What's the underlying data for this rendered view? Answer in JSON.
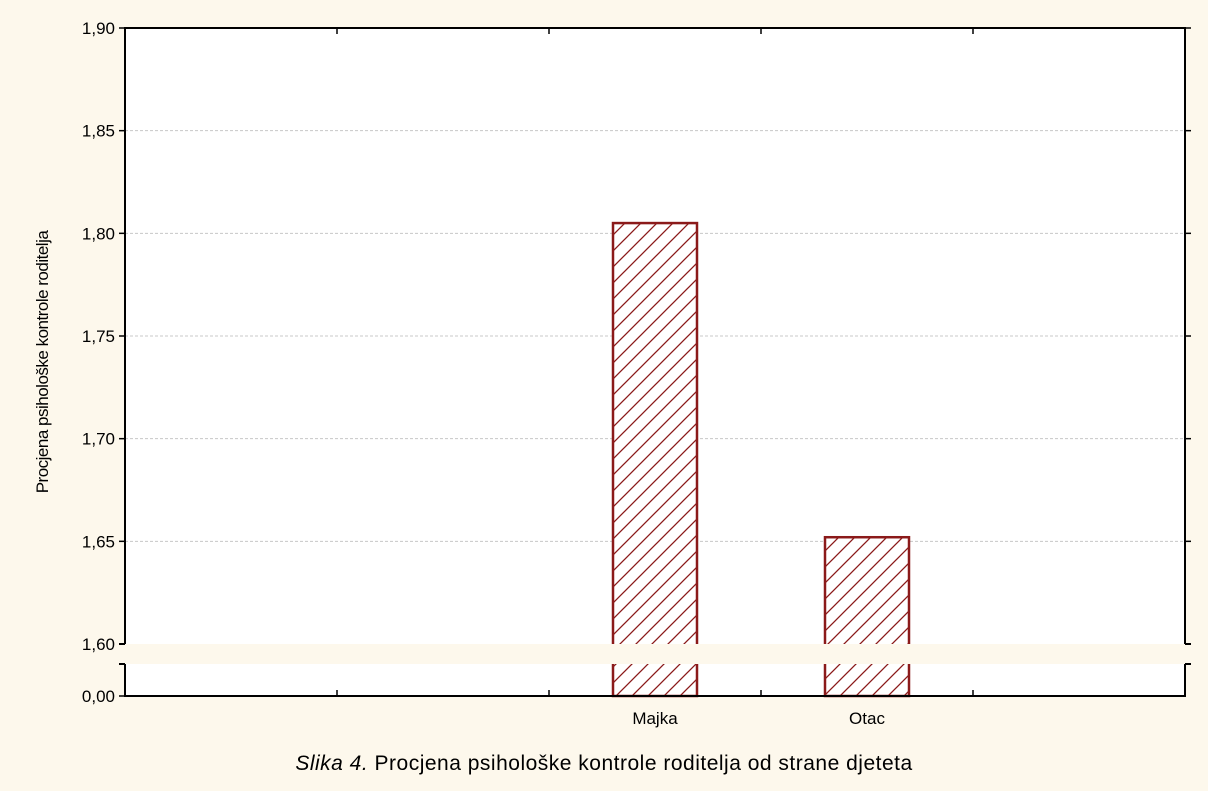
{
  "chart_data": {
    "type": "bar",
    "categories": [
      "Majka",
      "Otac"
    ],
    "values": [
      1.805,
      1.652
    ],
    "ylabel": "Procjena psihološke kontrole roditelja",
    "ylim": [
      1.6,
      1.9
    ],
    "yticks": [
      "1,60",
      "1,65",
      "1,70",
      "1,75",
      "1,80",
      "1,85",
      "1,90"
    ],
    "axis_break": true,
    "baseline_tick": "0,00",
    "grid": "horizontal-dotted",
    "colors": {
      "bar_stroke": "#8b1a1a",
      "background": "#fdf8ec",
      "plot_bg": "#ffffff",
      "grid": "#c8c8c8"
    }
  },
  "caption": {
    "prefix": "Slika 4.",
    "text": "Procjena psihološke kontrole roditelja od strane djeteta"
  }
}
